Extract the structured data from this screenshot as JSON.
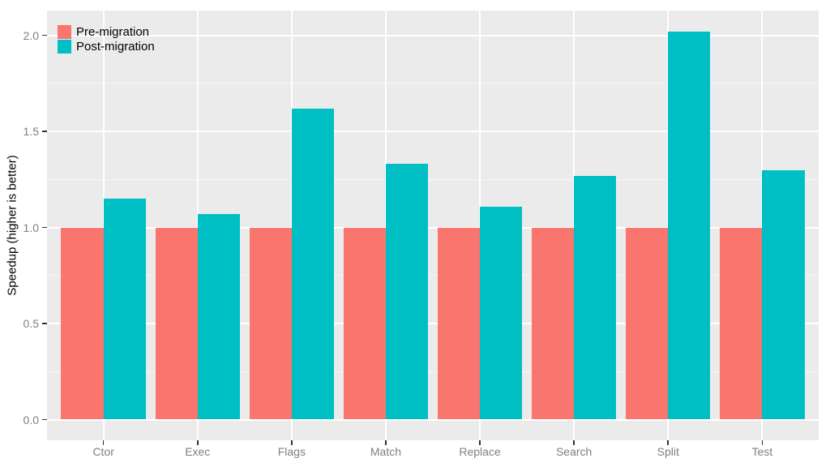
{
  "chart_data": {
    "type": "bar",
    "title": "",
    "xlabel": "",
    "ylabel": "Speedup (higher is better)",
    "categories": [
      "Ctor",
      "Exec",
      "Flags",
      "Match",
      "Replace",
      "Search",
      "Split",
      "Test"
    ],
    "series": [
      {
        "name": "Pre-migration",
        "color": "#F8766D",
        "values": [
          1.0,
          1.0,
          1.0,
          1.0,
          1.0,
          1.0,
          1.0,
          1.0
        ]
      },
      {
        "name": "Post-migration",
        "color": "#00BFC4",
        "values": [
          1.15,
          1.07,
          1.62,
          1.33,
          1.11,
          1.27,
          2.02,
          1.3
        ]
      }
    ],
    "yticks": [
      0.0,
      0.5,
      1.0,
      1.5,
      2.0
    ],
    "ytick_labels": [
      "0.0",
      "0.5",
      "1.0",
      "1.5",
      "2.0"
    ],
    "ylim": [
      0,
      2.13
    ],
    "legend_position": "top-left-inside",
    "grid": "major-and-minor",
    "colors": {
      "panel_background": "#EBEBEB",
      "grid_major": "#FFFFFF",
      "grid_minor": "rgba(255,255,255,0.55)",
      "tick_text": "#7F7F7F",
      "axis_title_text": "#000000",
      "tick_mark": "#333333"
    }
  }
}
